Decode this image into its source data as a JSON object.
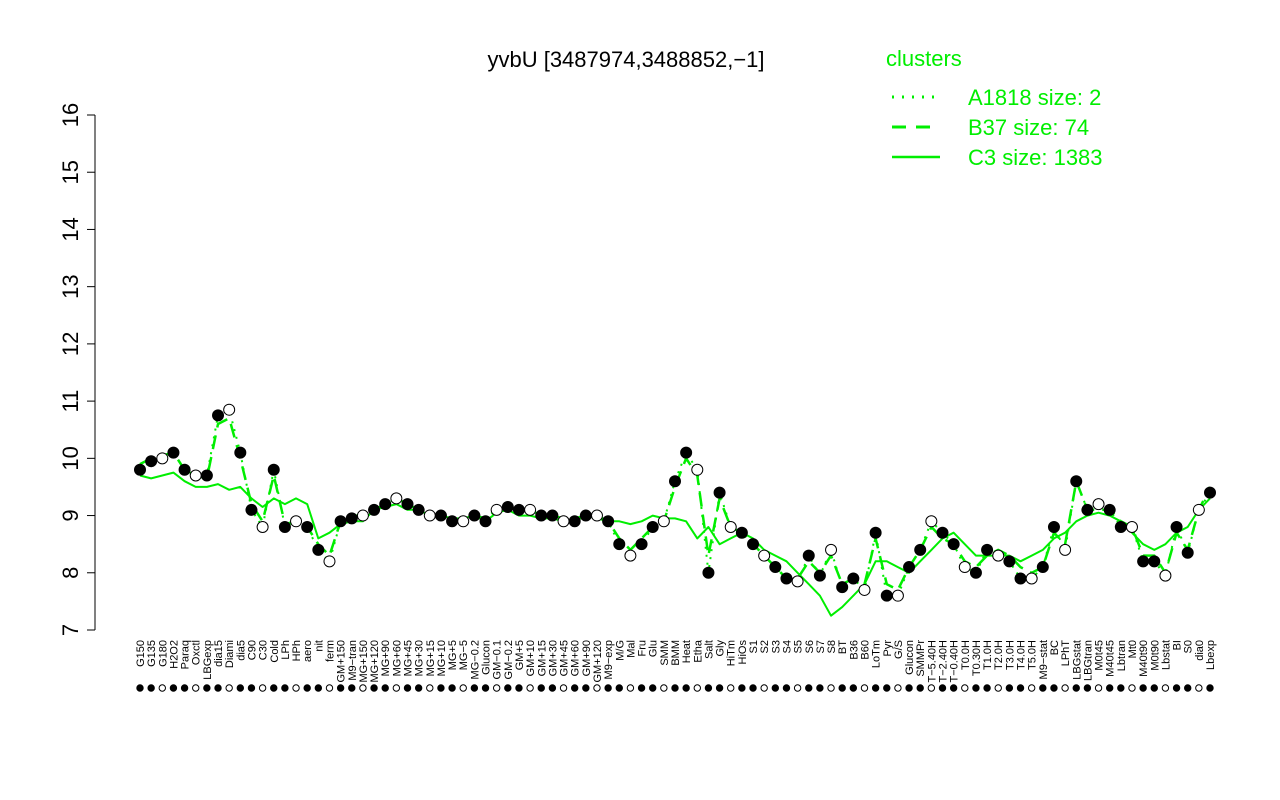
{
  "chart_data": {
    "type": "line",
    "title": "yvbU [3487974,3488852,−1]",
    "xlabel": "",
    "ylabel": "",
    "ylim": [
      7,
      16
    ],
    "yticks": [
      7,
      8,
      9,
      10,
      11,
      12,
      13,
      14,
      15,
      16
    ],
    "grid": false,
    "legend_position": "top-right",
    "legend": {
      "title": "clusters",
      "entries": [
        {
          "label": "A1818 size: 2",
          "style": "dotted"
        },
        {
          "label": "B37 size: 74",
          "style": "dashed"
        },
        {
          "label": "C3 size: 1383",
          "style": "solid"
        }
      ]
    },
    "colors": {
      "accent": "#00ee00",
      "points_filled": "#000000",
      "points_open": "#ffffff"
    },
    "x_tick_labels": [
      "G150",
      "G135",
      "G180",
      "H2O2",
      "Paraq",
      "Oxctl",
      "LBGexp",
      "dia15",
      "Diami",
      "dia5",
      "C90",
      "C30",
      "Cold",
      "LPh",
      "HPh",
      "aero",
      "nit",
      "ferm",
      "GM+150",
      "M9−tran",
      "MG+150",
      "MG+120",
      "MG+90",
      "MG+60",
      "MG+45",
      "MG+30",
      "MG+15",
      "MG+10",
      "MG+5",
      "MG−5",
      "MG−0.2",
      "Glucon",
      "GM−0.1",
      "GM−0.2",
      "GM+5",
      "GM+10",
      "GM+15",
      "GM+30",
      "GM+45",
      "GM+60",
      "GM+90",
      "GM+120",
      "M9−exp",
      "M/G",
      "Mal",
      "Fru",
      "Glu",
      "SMM",
      "BMM",
      "Heat",
      "Etha",
      "Salt",
      "Gly",
      "HiTm",
      "HiOs",
      "S1",
      "S2",
      "S3",
      "S4",
      "S5",
      "S6",
      "S7",
      "S8",
      "BT",
      "B36",
      "B60",
      "LoTm",
      "Pyr",
      "G/S",
      "Glucon",
      "SMMPr",
      "T−5.40H",
      "T−2.40H",
      "T−0.40H",
      "T0.0H",
      "T0.30H",
      "T1.0H",
      "T2.0H",
      "T3.0H",
      "T4.0H",
      "T5.0H",
      "M9−stat",
      "BC",
      "LPhT",
      "LBGstat",
      "LBGtran",
      "M0t45",
      "M40t45",
      "Lbtran",
      "Mt0",
      "M40t90",
      "M0t90",
      "Lbstat",
      "BI",
      "S0",
      "dia0",
      "Lbexp"
    ],
    "series": [
      {
        "name": "C3 size: 1383",
        "style": "solid",
        "values": [
          9.7,
          9.65,
          9.7,
          9.75,
          9.6,
          9.5,
          9.5,
          9.55,
          9.45,
          9.5,
          9.3,
          9.15,
          9.3,
          9.2,
          9.3,
          9.2,
          8.6,
          8.7,
          8.85,
          8.9,
          8.9,
          9.1,
          9.15,
          9.2,
          9.1,
          9.1,
          9.0,
          9.0,
          8.95,
          8.95,
          9.0,
          8.9,
          9.05,
          9.1,
          9.0,
          9.0,
          8.95,
          8.95,
          8.9,
          8.9,
          9.0,
          8.95,
          8.9,
          8.9,
          8.85,
          8.9,
          9.0,
          8.95,
          8.95,
          8.9,
          8.6,
          8.8,
          8.5,
          8.6,
          8.7,
          8.6,
          8.4,
          8.3,
          8.2,
          8.0,
          7.8,
          7.6,
          7.25,
          7.4,
          7.6,
          7.8,
          8.2,
          8.2,
          8.1,
          8.0,
          8.2,
          8.4,
          8.6,
          8.7,
          8.5,
          8.3,
          8.3,
          8.3,
          8.3,
          8.2,
          8.3,
          8.4,
          8.6,
          8.7,
          8.9,
          9.0,
          9.05,
          9.0,
          8.9,
          8.7,
          8.5,
          8.4,
          8.5,
          8.7,
          8.8,
          9.1,
          9.3
        ]
      },
      {
        "name": "B37 size: 74",
        "style": "dashed",
        "values": [
          9.9,
          10.0,
          10.05,
          10.1,
          9.8,
          9.7,
          9.65,
          10.6,
          10.7,
          10.0,
          9.2,
          8.9,
          9.7,
          8.85,
          8.9,
          8.8,
          8.5,
          8.3,
          8.9,
          9.0,
          9.0,
          9.1,
          9.2,
          9.3,
          9.2,
          9.1,
          9.0,
          9.0,
          8.9,
          8.9,
          9.0,
          8.95,
          9.1,
          9.15,
          9.1,
          9.1,
          9.0,
          9.0,
          8.95,
          8.95,
          9.0,
          9.0,
          8.9,
          8.6,
          8.4,
          8.6,
          8.8,
          8.9,
          9.5,
          10.0,
          9.7,
          8.3,
          9.3,
          8.8,
          8.7,
          8.5,
          8.3,
          8.1,
          7.9,
          7.9,
          8.2,
          8.0,
          8.3,
          7.8,
          7.9,
          7.8,
          8.6,
          7.8,
          7.7,
          8.1,
          8.4,
          8.8,
          8.6,
          8.5,
          8.2,
          8.1,
          8.3,
          8.4,
          8.3,
          8.1,
          8.0,
          8.1,
          8.7,
          8.5,
          9.6,
          9.1,
          9.1,
          9.1,
          8.9,
          8.8,
          8.3,
          8.3,
          8.0,
          8.7,
          8.4,
          9.1,
          9.5
        ]
      },
      {
        "name": "A1818 size: 2",
        "style": "dotted",
        "values": [
          9.8,
          9.95,
          10.0,
          10.1,
          9.8,
          9.7,
          9.7,
          10.75,
          10.85,
          10.1,
          9.1,
          8.8,
          9.8,
          8.8,
          8.9,
          8.8,
          8.4,
          8.2,
          8.9,
          8.95,
          9.0,
          9.1,
          9.2,
          9.3,
          9.2,
          9.1,
          9.0,
          9.0,
          8.9,
          8.9,
          9.0,
          8.9,
          9.1,
          9.15,
          9.1,
          9.1,
          9.0,
          9.0,
          8.9,
          8.9,
          9.0,
          9.0,
          8.9,
          8.5,
          8.3,
          8.5,
          8.8,
          8.9,
          9.6,
          10.1,
          9.8,
          8.0,
          9.4,
          8.8,
          8.7,
          8.5,
          8.3,
          8.1,
          7.9,
          7.85,
          8.3,
          7.95,
          8.4,
          7.75,
          7.9,
          7.7,
          8.7,
          7.6,
          7.6,
          8.1,
          8.4,
          8.9,
          8.7,
          8.5,
          8.1,
          8.0,
          8.4,
          8.3,
          8.2,
          7.9,
          7.9,
          8.1,
          8.8,
          8.4,
          9.6,
          9.1,
          9.2,
          9.1,
          8.8,
          8.8,
          8.2,
          8.2,
          7.95,
          8.8,
          8.35,
          9.1,
          9.4
        ]
      }
    ]
  }
}
